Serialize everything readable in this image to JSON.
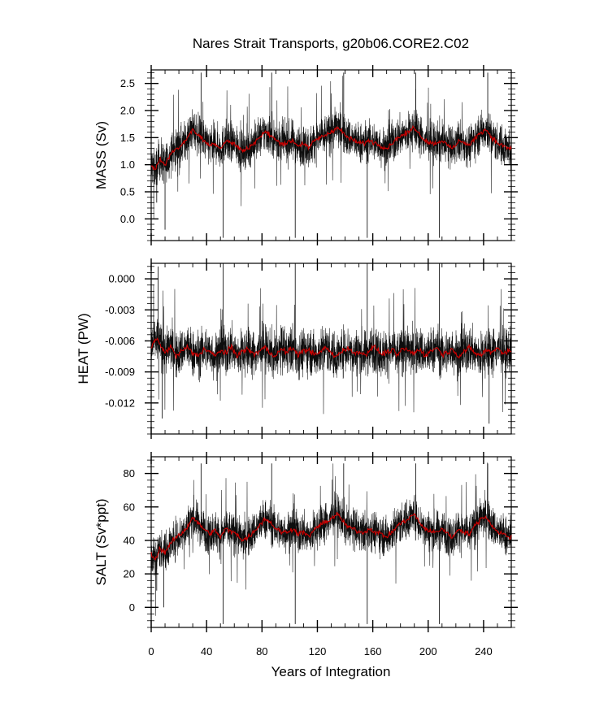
{
  "figure": {
    "title": "Nares Strait Transports, g20b06.CORE2.C02",
    "xlabel": "Years of Integration",
    "xlim": [
      0,
      260
    ],
    "xticks": [
      0,
      40,
      80,
      120,
      160,
      200,
      240
    ],
    "xtick_labels": [
      "0",
      "40",
      "80",
      "120",
      "160",
      "200",
      "240"
    ],
    "colors": {
      "raw": "#000000",
      "smooth": "#cc0000"
    }
  },
  "chart_data": [
    {
      "type": "line",
      "panel": "mass",
      "ylabel": "MASS (Sv)",
      "ylim": [
        -0.4,
        2.75
      ],
      "yticks": [
        0.0,
        0.5,
        1.0,
        1.5,
        2.0,
        2.5
      ],
      "ytick_labels": [
        "0.0",
        "0.5",
        "1.0",
        "1.5",
        "2.0",
        "2.5"
      ],
      "raw_mean": 1.4,
      "raw_spread": 0.25,
      "series": [
        {
          "role": "smoothed",
          "x": [
            0,
            3,
            6,
            10,
            14,
            18,
            22,
            26,
            30,
            34,
            38,
            42,
            46,
            50,
            54,
            58,
            62,
            66,
            70,
            74,
            78,
            82,
            86,
            90,
            94,
            98,
            102,
            106,
            110,
            114,
            118,
            122,
            126,
            130,
            134,
            138,
            142,
            146,
            150,
            154,
            158,
            162,
            166,
            170,
            174,
            178,
            182,
            186,
            190,
            194,
            198,
            202,
            206,
            210,
            214,
            218,
            222,
            226,
            230,
            234,
            238,
            242,
            246,
            250,
            254,
            258
          ],
          "values": [
            1.0,
            0.9,
            1.1,
            1.0,
            1.2,
            1.3,
            1.35,
            1.5,
            1.65,
            1.55,
            1.45,
            1.35,
            1.4,
            1.3,
            1.45,
            1.4,
            1.35,
            1.25,
            1.3,
            1.4,
            1.5,
            1.6,
            1.55,
            1.45,
            1.4,
            1.4,
            1.45,
            1.35,
            1.4,
            1.3,
            1.45,
            1.5,
            1.55,
            1.6,
            1.7,
            1.6,
            1.5,
            1.45,
            1.4,
            1.4,
            1.45,
            1.4,
            1.35,
            1.3,
            1.4,
            1.5,
            1.55,
            1.6,
            1.7,
            1.55,
            1.45,
            1.4,
            1.4,
            1.45,
            1.35,
            1.3,
            1.45,
            1.4,
            1.35,
            1.5,
            1.6,
            1.65,
            1.5,
            1.4,
            1.35,
            1.3
          ]
        }
      ],
      "spikes": [
        [
          4,
          0.3
        ],
        [
          10,
          -0.2
        ],
        [
          36,
          2.7
        ],
        [
          52,
          -0.35
        ],
        [
          87,
          2.7
        ],
        [
          104,
          -0.35
        ],
        [
          139,
          2.7
        ],
        [
          156,
          -0.35
        ],
        [
          191,
          2.7
        ],
        [
          208,
          -0.35
        ],
        [
          243,
          2.7
        ]
      ]
    },
    {
      "type": "line",
      "panel": "heat",
      "ylabel": "HEAT (PW)",
      "ylim": [
        -0.015,
        0.0015
      ],
      "yticks": [
        0.0,
        -0.003,
        -0.006,
        -0.009,
        -0.012
      ],
      "ytick_labels": [
        "0.000",
        "-0.003",
        "-0.006",
        "-0.009",
        "-0.012"
      ],
      "raw_mean": -0.0072,
      "raw_spread": 0.0015,
      "series": [
        {
          "role": "smoothed",
          "x": [
            0,
            3,
            6,
            10,
            14,
            18,
            22,
            26,
            30,
            34,
            38,
            42,
            46,
            50,
            54,
            58,
            62,
            66,
            70,
            74,
            78,
            82,
            86,
            90,
            94,
            98,
            102,
            106,
            110,
            114,
            118,
            122,
            126,
            130,
            134,
            138,
            142,
            146,
            150,
            154,
            158,
            162,
            166,
            170,
            174,
            178,
            182,
            186,
            190,
            194,
            198,
            202,
            206,
            210,
            214,
            218,
            222,
            226,
            230,
            234,
            238,
            242,
            246,
            250,
            254,
            258
          ],
          "values": [
            -0.0068,
            -0.0058,
            -0.0062,
            -0.0072,
            -0.0065,
            -0.0075,
            -0.007,
            -0.0066,
            -0.0072,
            -0.0074,
            -0.0068,
            -0.007,
            -0.0075,
            -0.0069,
            -0.0072,
            -0.0066,
            -0.0074,
            -0.007,
            -0.0068,
            -0.0073,
            -0.007,
            -0.0066,
            -0.0072,
            -0.0074,
            -0.0068,
            -0.0071,
            -0.0067,
            -0.0073,
            -0.007,
            -0.0068,
            -0.0074,
            -0.0071,
            -0.0066,
            -0.0072,
            -0.0075,
            -0.0069,
            -0.0067,
            -0.0072,
            -0.007,
            -0.0074,
            -0.0068,
            -0.0066,
            -0.0073,
            -0.0071,
            -0.0069,
            -0.0074,
            -0.0067,
            -0.007,
            -0.0072,
            -0.0068,
            -0.0074,
            -0.007,
            -0.0066,
            -0.0073,
            -0.0071,
            -0.0068,
            -0.0075,
            -0.007,
            -0.0067,
            -0.0072,
            -0.0074,
            -0.0069,
            -0.0071,
            -0.0066,
            -0.0072,
            -0.007
          ]
        }
      ],
      "spikes": [
        [
          5,
          0.0012
        ],
        [
          8,
          -0.0135
        ],
        [
          52,
          0.0018
        ],
        [
          104,
          0.0018
        ],
        [
          156,
          0.0018
        ],
        [
          208,
          0.0018
        ],
        [
          244,
          -0.014
        ]
      ]
    },
    {
      "type": "line",
      "panel": "salt",
      "ylabel": "SALT (Sv*ppt)",
      "ylim": [
        -12,
        90
      ],
      "yticks": [
        0,
        20,
        40,
        60,
        80
      ],
      "ytick_labels": [
        "0",
        "20",
        "40",
        "60",
        "80"
      ],
      "raw_mean": 45,
      "raw_spread": 8,
      "series": [
        {
          "role": "smoothed",
          "x": [
            0,
            3,
            6,
            10,
            14,
            18,
            22,
            26,
            30,
            34,
            38,
            42,
            46,
            50,
            54,
            58,
            62,
            66,
            70,
            74,
            78,
            82,
            86,
            90,
            94,
            98,
            102,
            106,
            110,
            114,
            118,
            122,
            126,
            130,
            134,
            138,
            142,
            146,
            150,
            154,
            158,
            162,
            166,
            170,
            174,
            178,
            182,
            186,
            190,
            194,
            198,
            202,
            206,
            210,
            214,
            218,
            222,
            226,
            230,
            234,
            238,
            242,
            246,
            250,
            254,
            258
          ],
          "values": [
            32,
            28,
            35,
            33,
            38,
            42,
            44,
            48,
            54,
            50,
            47,
            44,
            46,
            42,
            47,
            45,
            44,
            40,
            42,
            45,
            49,
            53,
            51,
            47,
            45,
            45,
            47,
            44,
            45,
            42,
            47,
            49,
            51,
            53,
            56,
            52,
            48,
            47,
            45,
            45,
            47,
            45,
            44,
            42,
            45,
            49,
            51,
            53,
            56,
            50,
            47,
            45,
            45,
            47,
            44,
            42,
            47,
            45,
            44,
            49,
            53,
            54,
            49,
            45,
            44,
            42
          ]
        }
      ],
      "spikes": [
        [
          4,
          10
        ],
        [
          9,
          0
        ],
        [
          36,
          86
        ],
        [
          52,
          -10
        ],
        [
          87,
          86
        ],
        [
          104,
          -10
        ],
        [
          139,
          86
        ],
        [
          156,
          -10
        ],
        [
          191,
          86
        ],
        [
          208,
          -10
        ],
        [
          243,
          86
        ]
      ]
    }
  ]
}
